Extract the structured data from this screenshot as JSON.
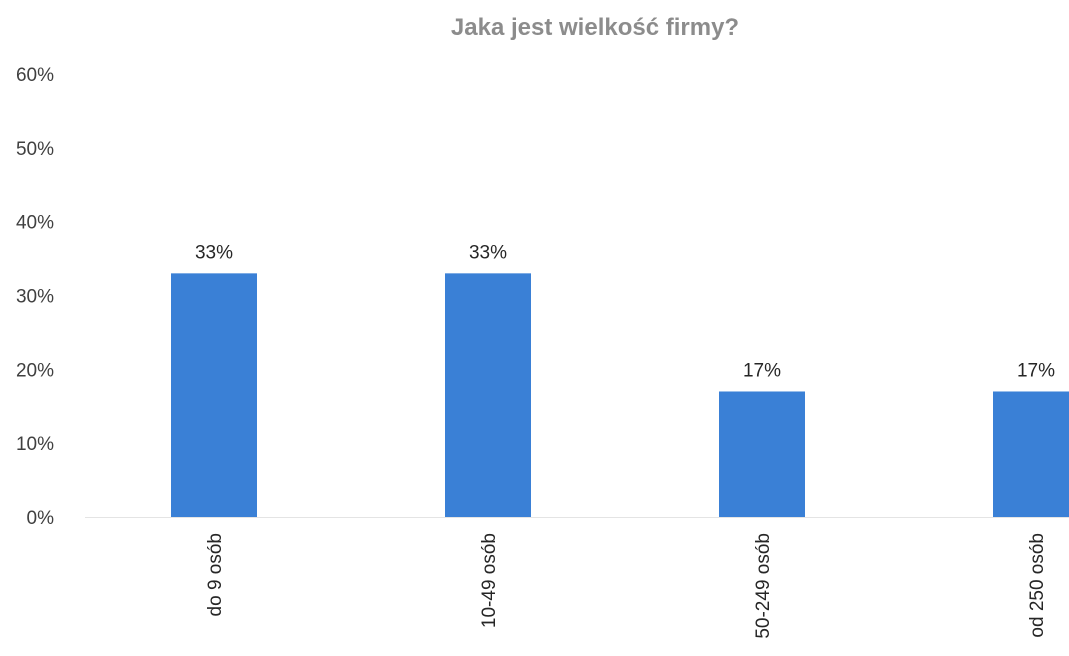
{
  "chart_data": {
    "type": "bar",
    "title": "Jaka jest wielkość firmy?",
    "xlabel": "",
    "ylabel": "",
    "categories": [
      "do 9 osób",
      "10-49 osób",
      "50-249 osób",
      "od 250 osób"
    ],
    "values": [
      33,
      33,
      17,
      17
    ],
    "data_labels": [
      "33%",
      "33%",
      "17%",
      "17%"
    ],
    "y_ticks": [
      "0%",
      "10%",
      "20%",
      "30%",
      "40%",
      "50%",
      "60%"
    ],
    "ylim": [
      0,
      60
    ],
    "grid": false,
    "legend": "none",
    "bar_color": "#3a80d6",
    "title_color": "#8c8c8c"
  }
}
